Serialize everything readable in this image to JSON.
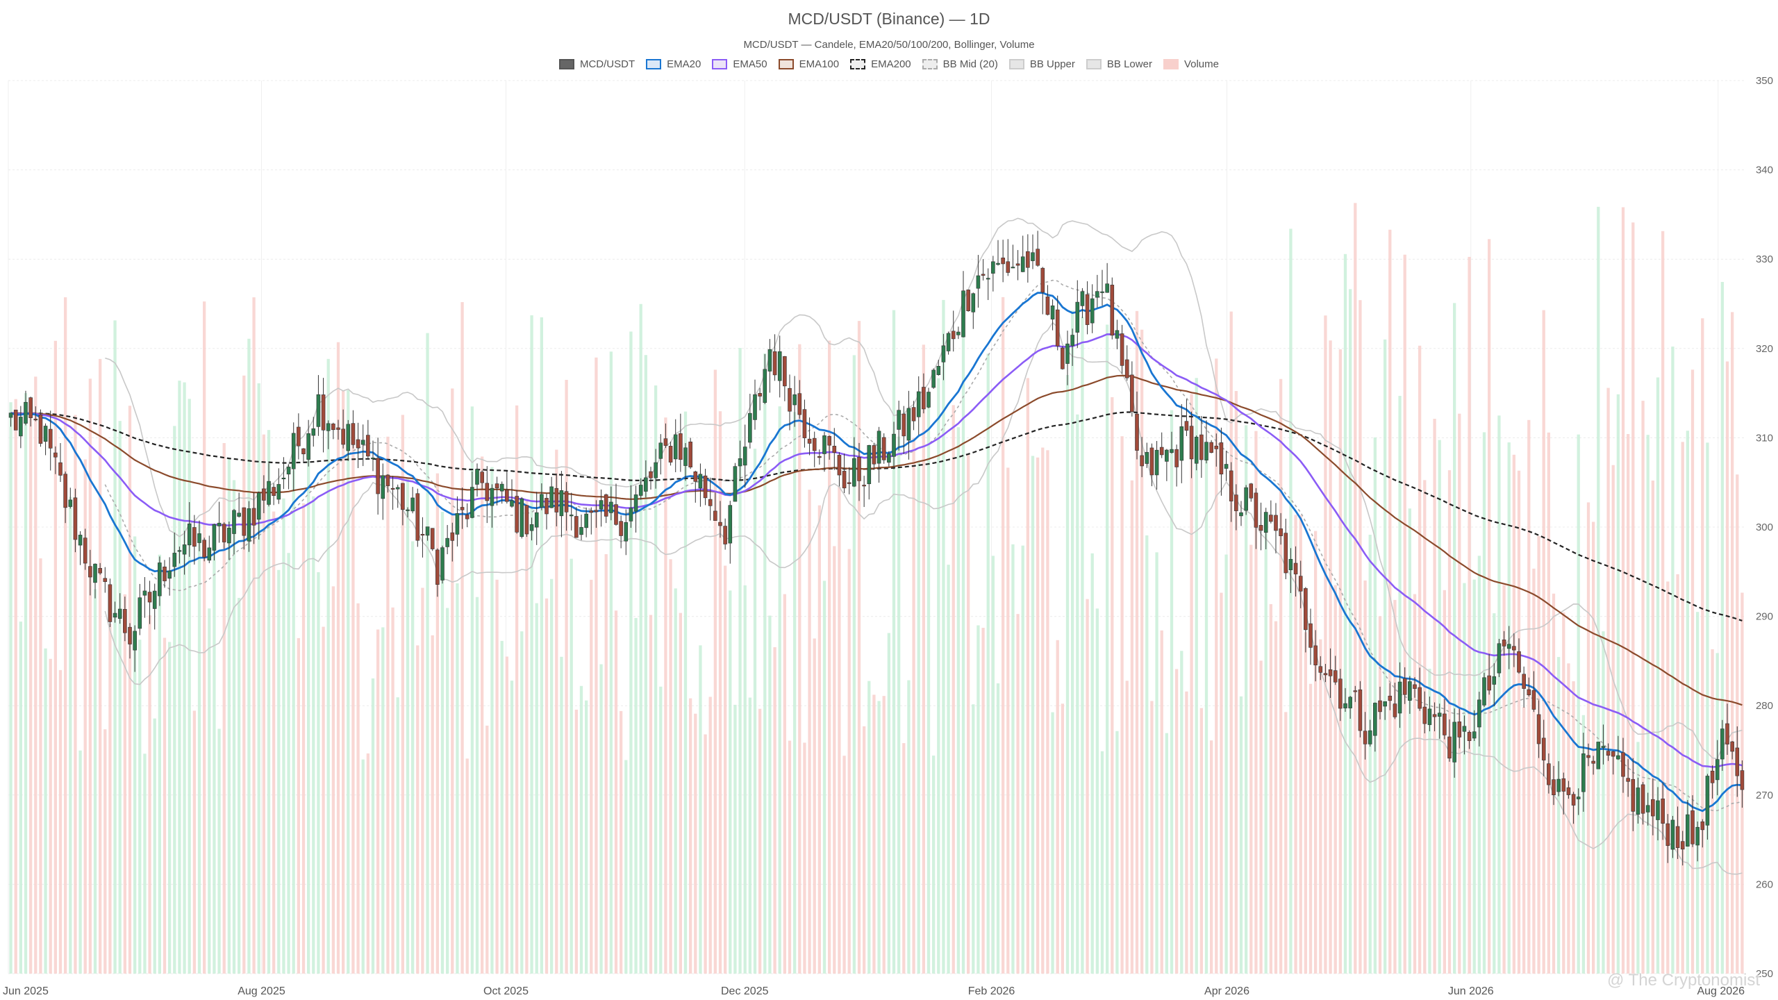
{
  "chart_data": {
    "type": "candlestick",
    "title": "MCD/USDT (Binance) — 1D",
    "subtitle": "MCD/USDT — Candele, EMA20/50/100/200, Bollinger, Volume",
    "legend": [
      {
        "name": "MCD/USDT",
        "fill": "#666666",
        "stroke": "#555555",
        "style": "solid"
      },
      {
        "name": "EMA20",
        "fill": "#dbe8f7",
        "stroke": "#1976d2",
        "style": "solid"
      },
      {
        "name": "EMA50",
        "fill": "#ece4f7",
        "stroke": "#8b5cf6",
        "style": "solid"
      },
      {
        "name": "EMA100",
        "fill": "#f0e4dc",
        "stroke": "#8b4a2b",
        "style": "solid"
      },
      {
        "name": "EMA200",
        "fill": "#eeeeee",
        "stroke": "#222222",
        "style": "dashed"
      },
      {
        "name": "BB Mid (20)",
        "fill": "#eeeeee",
        "stroke": "#aaaaaa",
        "style": "dashed"
      },
      {
        "name": "BB Upper",
        "fill": "#e6e6e6",
        "stroke": "#cccccc",
        "style": "solid"
      },
      {
        "name": "BB Lower",
        "fill": "#e6e6e6",
        "stroke": "#cccccc",
        "style": "solid"
      },
      {
        "name": "Volume",
        "fill": "#f8d0cc",
        "stroke": "#f8d0cc",
        "style": "solid"
      }
    ],
    "x_tick_labels": [
      "Jun 2025",
      "Aug 2025",
      "Oct 2025",
      "Dec 2025",
      "Feb 2026",
      "Apr 2026",
      "Jun 2026",
      "Aug 2026"
    ],
    "y_tick_labels": [
      "250",
      "260",
      "270",
      "280",
      "290",
      "300",
      "310",
      "320",
      "330",
      "340",
      "350"
    ],
    "ylim": [
      250,
      350
    ],
    "y_axis_position": "right",
    "grid": true,
    "colors": {
      "up": "#2e7d4f",
      "down": "#a04a3a",
      "volume_up": "#c9efd8",
      "volume_down": "#f8d0cc"
    },
    "close_anchors": [
      [
        0,
        312
      ],
      [
        6,
        311
      ],
      [
        11,
        303
      ],
      [
        18,
        293
      ],
      [
        24,
        288
      ],
      [
        28,
        292
      ],
      [
        33,
        298
      ],
      [
        40,
        298
      ],
      [
        47,
        301
      ],
      [
        55,
        306
      ],
      [
        62,
        314
      ],
      [
        71,
        308
      ],
      [
        79,
        303
      ],
      [
        86,
        296
      ],
      [
        95,
        305
      ],
      [
        103,
        301
      ],
      [
        110,
        303
      ],
      [
        117,
        300
      ],
      [
        125,
        302
      ],
      [
        134,
        310
      ],
      [
        144,
        300
      ],
      [
        153,
        320
      ],
      [
        160,
        312
      ],
      [
        169,
        305
      ],
      [
        178,
        310
      ],
      [
        185,
        315
      ],
      [
        194,
        328
      ],
      [
        205,
        330
      ],
      [
        212,
        320
      ],
      [
        220,
        328
      ],
      [
        228,
        306
      ],
      [
        238,
        310
      ],
      [
        248,
        303
      ],
      [
        256,
        298
      ],
      [
        264,
        285
      ],
      [
        273,
        278
      ],
      [
        282,
        282
      ],
      [
        292,
        275
      ],
      [
        302,
        287
      ],
      [
        312,
        270
      ],
      [
        321,
        274
      ],
      [
        330,
        268
      ],
      [
        339,
        265
      ],
      [
        345,
        275
      ],
      [
        349,
        272
      ]
    ],
    "ema20_end": 271,
    "ema50_end": 275,
    "ema100_end": 283,
    "ema200_end": 293,
    "watermark": "@ The Cryptonomist"
  }
}
